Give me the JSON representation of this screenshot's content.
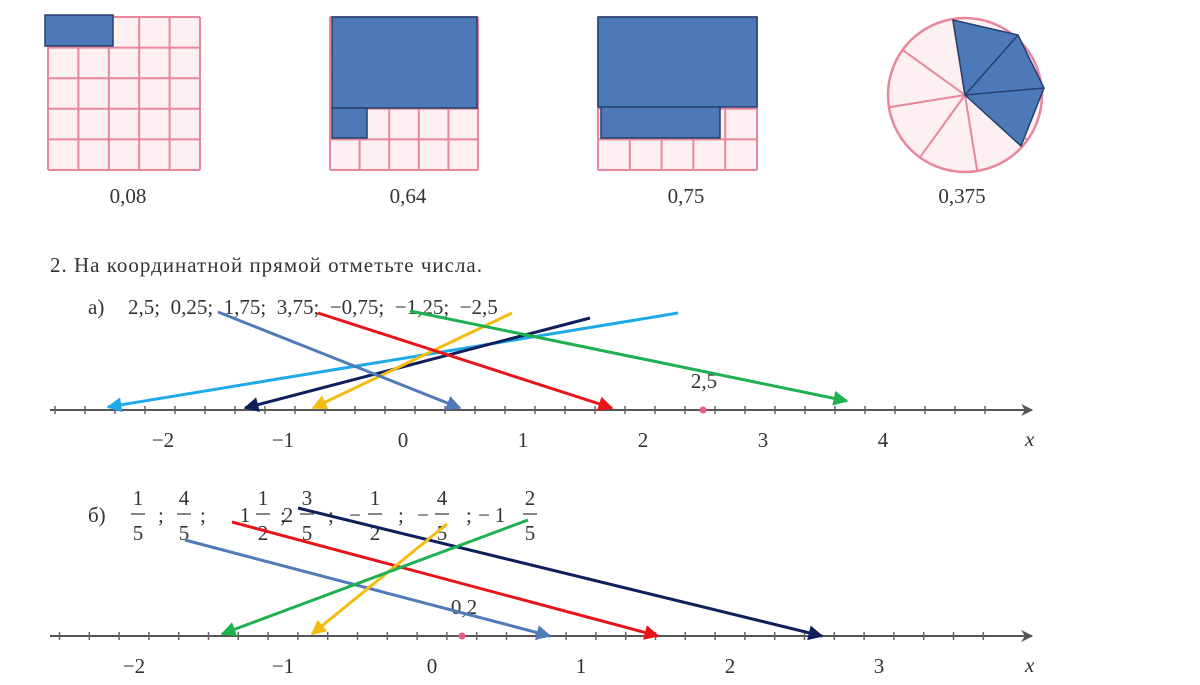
{
  "figures": {
    "labels": [
      "0,08",
      "0,64",
      "0,75",
      "0,375"
    ]
  },
  "task": {
    "heading": "2. На координатной прямой отметьте числа.",
    "part_a": {
      "label": "а)",
      "numbers": "2,5;  0,25;  1,75;  3,75;  −0,75;  −1,25;  −2,5",
      "axis_labels": [
        "−2",
        "−1",
        "0",
        "1",
        "2",
        "3",
        "4"
      ],
      "axis_name": "x",
      "marked": "2,5"
    },
    "part_b": {
      "label": "б)",
      "separator": ";",
      "items": [
        {
          "num": "1",
          "den": "5"
        },
        {
          "num": "4",
          "den": "5"
        },
        {
          "whole": "1",
          "num": "1",
          "den": "2"
        },
        {
          "whole": "2",
          "num": "3",
          "den": "5"
        },
        {
          "sign": "−",
          "num": "1",
          "den": "2"
        },
        {
          "sign": "−",
          "num": "4",
          "den": "5"
        },
        {
          "sign": "−",
          "whole": "1",
          "num": "2",
          "den": "5"
        }
      ],
      "axis_labels": [
        "−2",
        "−1",
        "0",
        "1",
        "2",
        "3"
      ],
      "axis_name": "x",
      "marked": "0,2"
    }
  }
}
